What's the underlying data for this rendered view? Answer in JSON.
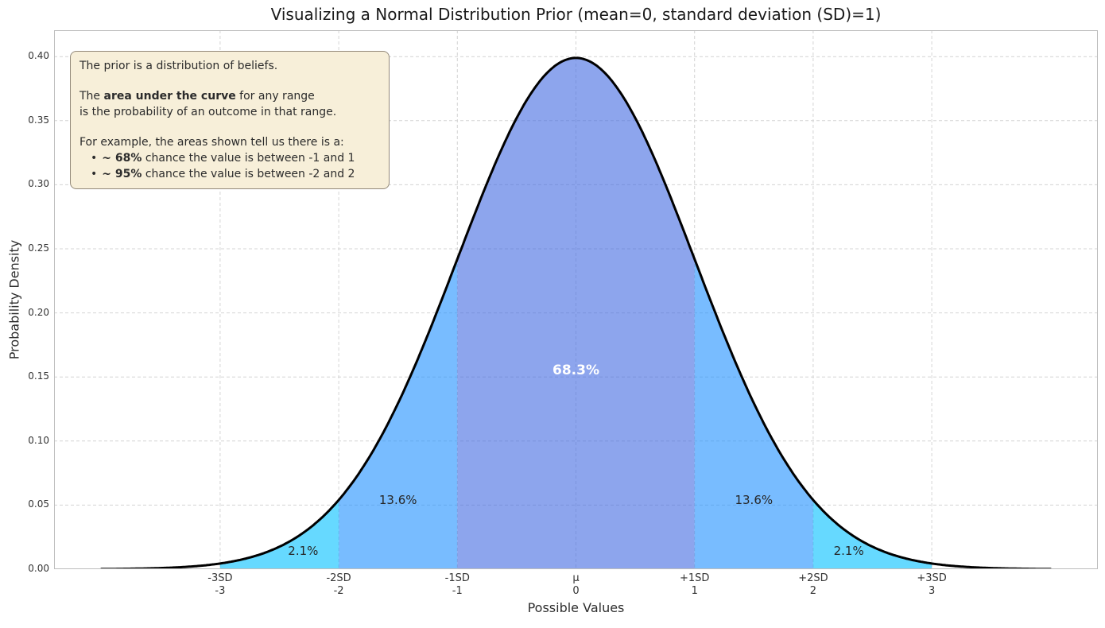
{
  "title": "Visualizing a Normal Distribution Prior (mean=0, standard deviation (SD)=1)",
  "axes": {
    "x_label": "Possible Values",
    "y_label": "Probability Density"
  },
  "annotation_box": {
    "line1": "The prior is a distribution of beliefs.",
    "line2_pre": "The ",
    "line2_bold": "area under the curve",
    "line2_post": " for any range",
    "line3": "is the probability of an outcome in that range.",
    "line4": "For example, the areas shown tell us there is a:",
    "bullet1_marker": "•",
    "bullet1_bold": "~ 68%",
    "bullet1_rest": " chance the value is between -1 and 1",
    "bullet2_marker": "•",
    "bullet2_bold": "~ 95%",
    "bullet2_rest": " chance the value is between -2 and 2"
  },
  "chart_data": {
    "type": "area",
    "distribution": "normal",
    "mean": 0,
    "sd": 1,
    "peak_density": 0.3989,
    "curve_color": "#000000",
    "grid": "dashed",
    "legend": "none",
    "x_range": [
      -4.4,
      4.4
    ],
    "curve_x_range": [
      -4,
      4
    ],
    "ylim": [
      0,
      0.4206
    ],
    "fill_opacity": 0.6,
    "fill_colors": {
      "inner": "#4169e1",
      "mid": "#1e90ff",
      "outer": "#00bfff"
    },
    "yticks": [
      {
        "value": 0.0,
        "label": "0.00"
      },
      {
        "value": 0.05,
        "label": "0.05"
      },
      {
        "value": 0.1,
        "label": "0.10"
      },
      {
        "value": 0.15,
        "label": "0.15"
      },
      {
        "value": 0.2,
        "label": "0.20"
      },
      {
        "value": 0.25,
        "label": "0.25"
      },
      {
        "value": 0.3,
        "label": "0.30"
      },
      {
        "value": 0.35,
        "label": "0.35"
      },
      {
        "value": 0.4,
        "label": "0.40"
      }
    ],
    "xticks": [
      {
        "z": -3,
        "sd_label": "-3SD",
        "value_label": "-3"
      },
      {
        "z": -2,
        "sd_label": "-2SD",
        "value_label": "-2"
      },
      {
        "z": -1,
        "sd_label": "-1SD",
        "value_label": "-1"
      },
      {
        "z": 0,
        "sd_label": "μ",
        "value_label": "0"
      },
      {
        "z": 1,
        "sd_label": "+1SD",
        "value_label": "1"
      },
      {
        "z": 2,
        "sd_label": "+2SD",
        "value_label": "2"
      },
      {
        "z": 3,
        "sd_label": "+3SD",
        "value_label": "3"
      }
    ],
    "bands": [
      {
        "range": [
          -3,
          -2
        ],
        "color_key": "outer",
        "label": "2.1%",
        "label_z": -2.3,
        "label_d": 0.0143,
        "label_style": "dark"
      },
      {
        "range": [
          -2,
          -1
        ],
        "color_key": "mid",
        "label": "13.6%",
        "label_z": -1.5,
        "label_d": 0.054,
        "label_style": "dark"
      },
      {
        "range": [
          -1,
          1
        ],
        "color_key": "inner",
        "label": "68.3%",
        "label_z": 0,
        "label_d": 0.155,
        "label_style": "big"
      },
      {
        "range": [
          1,
          2
        ],
        "color_key": "mid",
        "label": "13.6%",
        "label_z": 1.5,
        "label_d": 0.054,
        "label_style": "dark"
      },
      {
        "range": [
          2,
          3
        ],
        "color_key": "outer",
        "label": "2.1%",
        "label_z": 2.3,
        "label_d": 0.0143,
        "label_style": "dark"
      }
    ]
  }
}
